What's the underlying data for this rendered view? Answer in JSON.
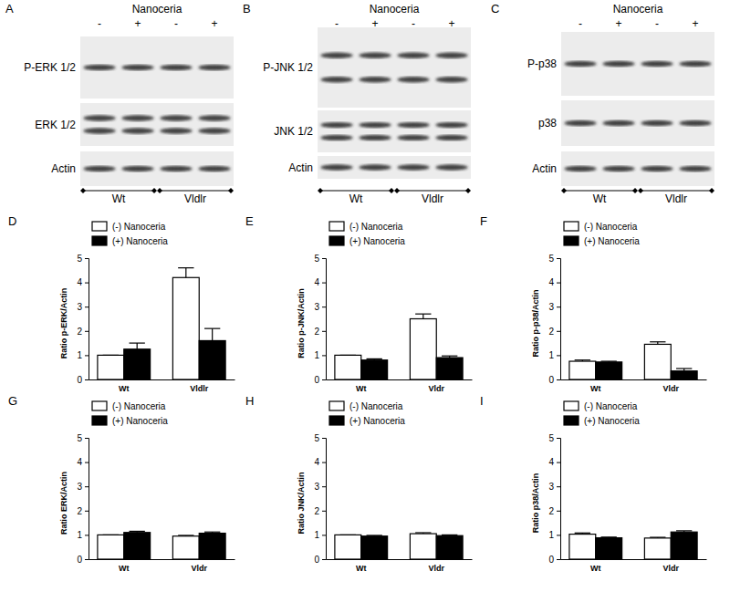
{
  "chart_data": [
    {
      "type": "bar",
      "title": "D",
      "y_label": "Ratio p-ERK/Actin",
      "categories": [
        "Wt",
        "Vldlr"
      ],
      "series": [
        {
          "name": "(-) Nanoceria",
          "color": "#ffffff",
          "values": [
            1.0,
            4.2
          ],
          "errors": [
            0,
            0.4
          ]
        },
        {
          "name": "(+) Nanoceria",
          "color": "#000000",
          "values": [
            1.25,
            1.6
          ],
          "errors": [
            0.25,
            0.5
          ]
        }
      ],
      "ylim": [
        0,
        5
      ],
      "yticks": [
        0,
        1,
        2,
        3,
        4,
        5
      ],
      "legend": "top-left"
    },
    {
      "type": "bar",
      "title": "E",
      "y_label": "Ratio p-JNK/Actin",
      "categories": [
        "Wt",
        "Vldr"
      ],
      "series": [
        {
          "name": "(-) Nanoceria",
          "color": "#ffffff",
          "values": [
            1.0,
            2.5
          ],
          "errors": [
            0,
            0.2
          ]
        },
        {
          "name": "(+) Nanoceria",
          "color": "#000000",
          "values": [
            0.8,
            0.9
          ],
          "errors": [
            0.05,
            0.07
          ]
        }
      ],
      "ylim": [
        0,
        5
      ],
      "yticks": [
        0,
        1,
        2,
        3,
        4,
        5
      ],
      "legend": "top-left"
    },
    {
      "type": "bar",
      "title": "F",
      "y_label": "Ratio p-p38/Actin",
      "categories": [
        "Wt",
        "Vldr"
      ],
      "series": [
        {
          "name": "(-) Nanoceria",
          "color": "#ffffff",
          "values": [
            0.75,
            1.45
          ],
          "errors": [
            0.05,
            0.1
          ]
        },
        {
          "name": "(+) Nanoceria",
          "color": "#000000",
          "values": [
            0.72,
            0.35
          ],
          "errors": [
            0.03,
            0.1
          ]
        }
      ],
      "ylim": [
        0,
        5
      ],
      "yticks": [
        0,
        1,
        2,
        3,
        4,
        5
      ],
      "legend": "top-left"
    },
    {
      "type": "bar",
      "title": "G",
      "y_label": "Ratio ERK/Actin",
      "categories": [
        "Wt",
        "Vldr"
      ],
      "series": [
        {
          "name": "(-) Nanoceria",
          "color": "#ffffff",
          "values": [
            1.0,
            0.95
          ],
          "errors": [
            0,
            0.03
          ]
        },
        {
          "name": "(+) Nanoceria",
          "color": "#000000",
          "values": [
            1.1,
            1.07
          ],
          "errors": [
            0.05,
            0.05
          ]
        }
      ],
      "ylim": [
        0,
        5
      ],
      "yticks": [
        0,
        1,
        2,
        3,
        4,
        5
      ],
      "legend": "top-left"
    },
    {
      "type": "bar",
      "title": "H",
      "y_label": "Ratio JNK/Actin",
      "categories": [
        "Wt",
        "Vldr"
      ],
      "series": [
        {
          "name": "(-) Nanoceria",
          "color": "#ffffff",
          "values": [
            1.0,
            1.05
          ],
          "errors": [
            0,
            0.04
          ]
        },
        {
          "name": "(+) Nanoceria",
          "color": "#000000",
          "values": [
            0.95,
            0.97
          ],
          "errors": [
            0.03,
            0.03
          ]
        }
      ],
      "ylim": [
        0,
        5
      ],
      "yticks": [
        0,
        1,
        2,
        3,
        4,
        5
      ],
      "legend": "top-left"
    },
    {
      "type": "bar",
      "title": "I",
      "y_label": "Ratio p38/Actin",
      "categories": [
        "Wt",
        "Vldr"
      ],
      "series": [
        {
          "name": "(-) Nanoceria",
          "color": "#ffffff",
          "values": [
            1.03,
            0.87
          ],
          "errors": [
            0.05,
            0.03
          ]
        },
        {
          "name": "(+) Nanoceria",
          "color": "#000000",
          "values": [
            0.88,
            1.12
          ],
          "errors": [
            0.03,
            0.05
          ]
        }
      ],
      "ylim": [
        0,
        5
      ],
      "yticks": [
        0,
        1,
        2,
        3,
        4,
        5
      ],
      "legend": "top-left"
    }
  ],
  "blots": [
    {
      "label": "A",
      "title": "Nanoceria",
      "lanes": [
        "-",
        "+",
        "-",
        "+"
      ],
      "rows": [
        "P-ERK 1/2",
        "ERK 1/2",
        "Actin"
      ],
      "groups": [
        "Wt",
        "Vldlr"
      ]
    },
    {
      "label": "B",
      "title": "Nanoceria",
      "lanes": [
        "-",
        "+",
        "-",
        "+"
      ],
      "rows": [
        "P-JNK 1/2",
        "JNK 1/2",
        "Actin"
      ],
      "groups": [
        "Wt",
        "Vldlr"
      ]
    },
    {
      "label": "C",
      "title": "Nanoceria",
      "lanes": [
        "-",
        "+",
        "-",
        "+"
      ],
      "rows": [
        "P-p38",
        "p38",
        "Actin"
      ],
      "groups": [
        "Wt",
        "Vldlr"
      ]
    }
  ]
}
